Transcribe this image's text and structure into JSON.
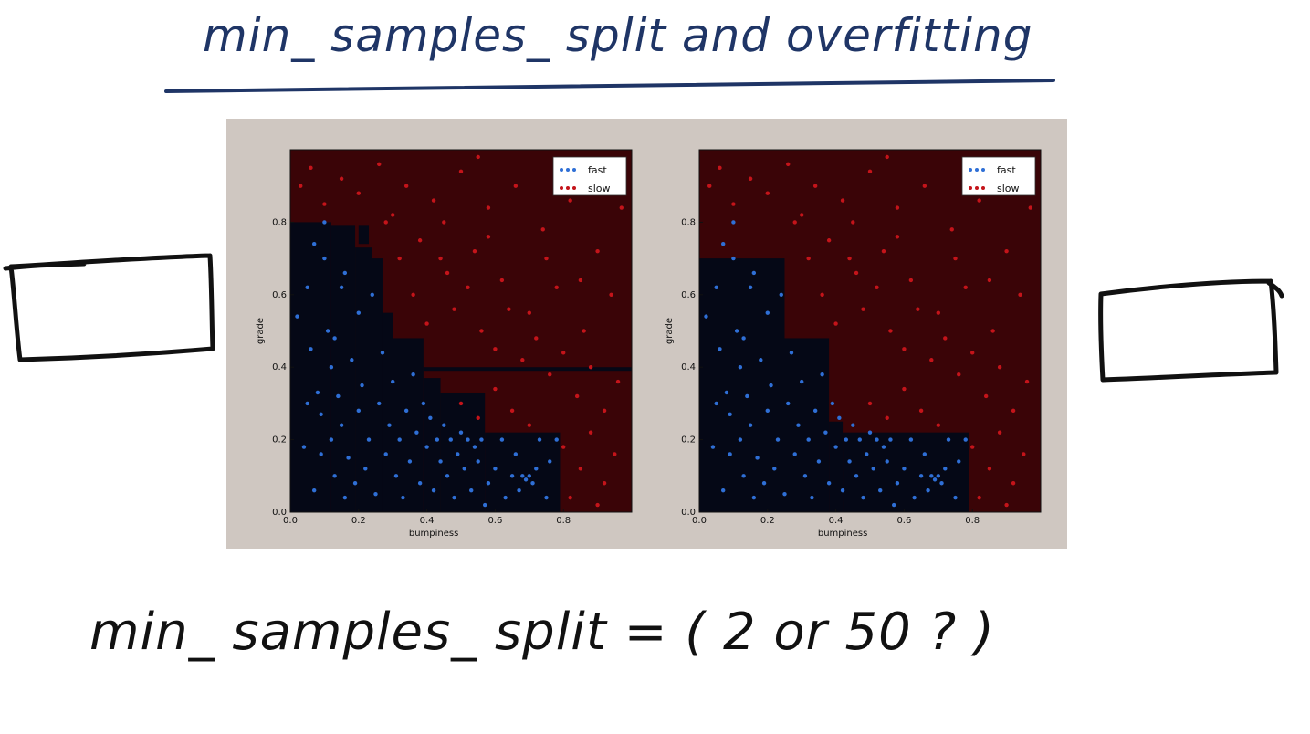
{
  "title": "min_ samples_ split   and   overfitting",
  "bottom_question": "min_ samples_ split  =  ( 2   or   50 ? )",
  "colors": {
    "fast_region": "#050816",
    "slow_region": "#3a0407",
    "fast_point": "#2f6fd6",
    "slow_point": "#c4141a",
    "figure_bg": "#cfc7c1",
    "ink_blue": "#1f3566"
  },
  "chart_data": [
    {
      "type": "scatter",
      "xlabel": "bumpiness",
      "ylabel": "grade",
      "xlim": [
        0.0,
        1.0
      ],
      "ylim": [
        0.0,
        1.0
      ],
      "x_ticks": [
        "0.0",
        "0.2",
        "0.4",
        "0.6",
        "0.8"
      ],
      "y_ticks": [
        "0.0",
        "0.2",
        "0.4",
        "0.6",
        "0.8"
      ],
      "legend": {
        "placement": "top-right",
        "entries": [
          "fast",
          "slow"
        ]
      },
      "fast_regions": [
        {
          "x0": 0.0,
          "x1": 0.12,
          "y0": 0.0,
          "y1": 0.8
        },
        {
          "x0": 0.12,
          "x1": 0.19,
          "y0": 0.0,
          "y1": 0.79
        },
        {
          "x0": 0.19,
          "x1": 0.24,
          "y0": 0.0,
          "y1": 0.73
        },
        {
          "x0": 0.24,
          "x1": 0.27,
          "y0": 0.0,
          "y1": 0.7
        },
        {
          "x0": 0.27,
          "x1": 0.3,
          "y0": 0.0,
          "y1": 0.55
        },
        {
          "x0": 0.3,
          "x1": 0.39,
          "y0": 0.0,
          "y1": 0.48
        },
        {
          "x0": 0.39,
          "x1": 0.44,
          "y0": 0.0,
          "y1": 0.37
        },
        {
          "x0": 0.44,
          "x1": 0.57,
          "y0": 0.0,
          "y1": 0.33
        },
        {
          "x0": 0.57,
          "x1": 0.79,
          "y0": 0.0,
          "y1": 0.22
        },
        {
          "x0": 0.39,
          "x1": 1.0,
          "y0": 0.39,
          "y1": 0.4
        },
        {
          "x0": 0.2,
          "x1": 0.23,
          "y0": 0.74,
          "y1": 0.79
        }
      ],
      "fast_points": [
        [
          0.02,
          0.54
        ],
        [
          0.04,
          0.18
        ],
        [
          0.05,
          0.62
        ],
        [
          0.06,
          0.45
        ],
        [
          0.07,
          0.06
        ],
        [
          0.08,
          0.33
        ],
        [
          0.09,
          0.16
        ],
        [
          0.09,
          0.27
        ],
        [
          0.1,
          0.7
        ],
        [
          0.1,
          0.8
        ],
        [
          0.11,
          0.5
        ],
        [
          0.12,
          0.2
        ],
        [
          0.12,
          0.4
        ],
        [
          0.13,
          0.1
        ],
        [
          0.14,
          0.32
        ],
        [
          0.15,
          0.62
        ],
        [
          0.15,
          0.24
        ],
        [
          0.16,
          0.04
        ],
        [
          0.17,
          0.15
        ],
        [
          0.18,
          0.42
        ],
        [
          0.19,
          0.08
        ],
        [
          0.2,
          0.55
        ],
        [
          0.2,
          0.28
        ],
        [
          0.21,
          0.35
        ],
        [
          0.22,
          0.12
        ],
        [
          0.23,
          0.2
        ],
        [
          0.24,
          0.6
        ],
        [
          0.25,
          0.05
        ],
        [
          0.26,
          0.3
        ],
        [
          0.27,
          0.44
        ],
        [
          0.28,
          0.16
        ],
        [
          0.29,
          0.24
        ],
        [
          0.3,
          0.36
        ],
        [
          0.31,
          0.1
        ],
        [
          0.32,
          0.2
        ],
        [
          0.33,
          0.04
        ],
        [
          0.34,
          0.28
        ],
        [
          0.35,
          0.14
        ],
        [
          0.36,
          0.38
        ],
        [
          0.37,
          0.22
        ],
        [
          0.38,
          0.08
        ],
        [
          0.39,
          0.3
        ],
        [
          0.4,
          0.18
        ],
        [
          0.41,
          0.26
        ],
        [
          0.42,
          0.06
        ],
        [
          0.43,
          0.2
        ],
        [
          0.44,
          0.14
        ],
        [
          0.45,
          0.24
        ],
        [
          0.46,
          0.1
        ],
        [
          0.47,
          0.2
        ],
        [
          0.48,
          0.04
        ],
        [
          0.49,
          0.16
        ],
        [
          0.5,
          0.22
        ],
        [
          0.51,
          0.12
        ],
        [
          0.52,
          0.2
        ],
        [
          0.53,
          0.06
        ],
        [
          0.54,
          0.18
        ],
        [
          0.55,
          0.14
        ],
        [
          0.56,
          0.2
        ],
        [
          0.57,
          0.02
        ],
        [
          0.58,
          0.08
        ],
        [
          0.6,
          0.12
        ],
        [
          0.62,
          0.2
        ],
        [
          0.63,
          0.04
        ],
        [
          0.65,
          0.1
        ],
        [
          0.66,
          0.16
        ],
        [
          0.67,
          0.06
        ],
        [
          0.68,
          0.1
        ],
        [
          0.69,
          0.09
        ],
        [
          0.7,
          0.1
        ],
        [
          0.71,
          0.08
        ],
        [
          0.72,
          0.12
        ],
        [
          0.73,
          0.2
        ],
        [
          0.75,
          0.04
        ],
        [
          0.76,
          0.14
        ],
        [
          0.78,
          0.2
        ],
        [
          0.05,
          0.3
        ],
        [
          0.13,
          0.48
        ],
        [
          0.07,
          0.74
        ],
        [
          0.16,
          0.66
        ]
      ],
      "slow_points": [
        [
          0.03,
          0.9
        ],
        [
          0.06,
          0.95
        ],
        [
          0.1,
          0.85
        ],
        [
          0.15,
          0.92
        ],
        [
          0.2,
          0.88
        ],
        [
          0.26,
          0.96
        ],
        [
          0.3,
          0.82
        ],
        [
          0.34,
          0.9
        ],
        [
          0.38,
          0.75
        ],
        [
          0.42,
          0.86
        ],
        [
          0.46,
          0.66
        ],
        [
          0.5,
          0.94
        ],
        [
          0.54,
          0.72
        ],
        [
          0.58,
          0.84
        ],
        [
          0.62,
          0.64
        ],
        [
          0.66,
          0.9
        ],
        [
          0.7,
          0.55
        ],
        [
          0.74,
          0.78
        ],
        [
          0.78,
          0.62
        ],
        [
          0.82,
          0.86
        ],
        [
          0.86,
          0.5
        ],
        [
          0.9,
          0.72
        ],
        [
          0.94,
          0.6
        ],
        [
          0.97,
          0.84
        ],
        [
          0.36,
          0.6
        ],
        [
          0.4,
          0.52
        ],
        [
          0.44,
          0.7
        ],
        [
          0.48,
          0.56
        ],
        [
          0.52,
          0.62
        ],
        [
          0.56,
          0.5
        ],
        [
          0.6,
          0.45
        ],
        [
          0.64,
          0.56
        ],
        [
          0.68,
          0.42
        ],
        [
          0.72,
          0.48
        ],
        [
          0.76,
          0.38
        ],
        [
          0.8,
          0.44
        ],
        [
          0.84,
          0.32
        ],
        [
          0.88,
          0.4
        ],
        [
          0.92,
          0.28
        ],
        [
          0.96,
          0.36
        ],
        [
          0.5,
          0.3
        ],
        [
          0.55,
          0.26
        ],
        [
          0.6,
          0.34
        ],
        [
          0.65,
          0.28
        ],
        [
          0.7,
          0.24
        ],
        [
          0.8,
          0.18
        ],
        [
          0.85,
          0.12
        ],
        [
          0.88,
          0.22
        ],
        [
          0.92,
          0.08
        ],
        [
          0.95,
          0.16
        ],
        [
          0.82,
          0.04
        ],
        [
          0.9,
          0.02
        ],
        [
          0.32,
          0.7
        ],
        [
          0.28,
          0.8
        ],
        [
          0.45,
          0.8
        ],
        [
          0.58,
          0.76
        ],
        [
          0.75,
          0.7
        ],
        [
          0.85,
          0.64
        ],
        [
          0.93,
          0.92
        ],
        [
          0.55,
          0.98
        ]
      ]
    },
    {
      "type": "scatter",
      "xlabel": "bumpiness",
      "ylabel": "grade",
      "xlim": [
        0.0,
        1.0
      ],
      "ylim": [
        0.0,
        1.0
      ],
      "x_ticks": [
        "0.0",
        "0.2",
        "0.4",
        "0.6",
        "0.8"
      ],
      "y_ticks": [
        "0.0",
        "0.2",
        "0.4",
        "0.6",
        "0.8"
      ],
      "legend": {
        "placement": "top-right",
        "entries": [
          "fast",
          "slow"
        ]
      },
      "fast_regions": [
        {
          "x0": 0.0,
          "x1": 0.25,
          "y0": 0.0,
          "y1": 0.7
        },
        {
          "x0": 0.25,
          "x1": 0.38,
          "y0": 0.0,
          "y1": 0.48
        },
        {
          "x0": 0.38,
          "x1": 0.42,
          "y0": 0.0,
          "y1": 0.25
        },
        {
          "x0": 0.42,
          "x1": 0.79,
          "y0": 0.0,
          "y1": 0.22
        }
      ],
      "fast_points": [
        [
          0.02,
          0.54
        ],
        [
          0.04,
          0.18
        ],
        [
          0.05,
          0.62
        ],
        [
          0.06,
          0.45
        ],
        [
          0.07,
          0.06
        ],
        [
          0.08,
          0.33
        ],
        [
          0.09,
          0.16
        ],
        [
          0.09,
          0.27
        ],
        [
          0.1,
          0.7
        ],
        [
          0.1,
          0.8
        ],
        [
          0.11,
          0.5
        ],
        [
          0.12,
          0.2
        ],
        [
          0.12,
          0.4
        ],
        [
          0.13,
          0.1
        ],
        [
          0.14,
          0.32
        ],
        [
          0.15,
          0.62
        ],
        [
          0.15,
          0.24
        ],
        [
          0.16,
          0.04
        ],
        [
          0.17,
          0.15
        ],
        [
          0.18,
          0.42
        ],
        [
          0.19,
          0.08
        ],
        [
          0.2,
          0.55
        ],
        [
          0.2,
          0.28
        ],
        [
          0.21,
          0.35
        ],
        [
          0.22,
          0.12
        ],
        [
          0.23,
          0.2
        ],
        [
          0.24,
          0.6
        ],
        [
          0.25,
          0.05
        ],
        [
          0.26,
          0.3
        ],
        [
          0.27,
          0.44
        ],
        [
          0.28,
          0.16
        ],
        [
          0.29,
          0.24
        ],
        [
          0.3,
          0.36
        ],
        [
          0.31,
          0.1
        ],
        [
          0.32,
          0.2
        ],
        [
          0.33,
          0.04
        ],
        [
          0.34,
          0.28
        ],
        [
          0.35,
          0.14
        ],
        [
          0.36,
          0.38
        ],
        [
          0.37,
          0.22
        ],
        [
          0.38,
          0.08
        ],
        [
          0.39,
          0.3
        ],
        [
          0.4,
          0.18
        ],
        [
          0.41,
          0.26
        ],
        [
          0.42,
          0.06
        ],
        [
          0.43,
          0.2
        ],
        [
          0.44,
          0.14
        ],
        [
          0.45,
          0.24
        ],
        [
          0.46,
          0.1
        ],
        [
          0.47,
          0.2
        ],
        [
          0.48,
          0.04
        ],
        [
          0.49,
          0.16
        ],
        [
          0.5,
          0.22
        ],
        [
          0.51,
          0.12
        ],
        [
          0.52,
          0.2
        ],
        [
          0.53,
          0.06
        ],
        [
          0.54,
          0.18
        ],
        [
          0.55,
          0.14
        ],
        [
          0.56,
          0.2
        ],
        [
          0.57,
          0.02
        ],
        [
          0.58,
          0.08
        ],
        [
          0.6,
          0.12
        ],
        [
          0.62,
          0.2
        ],
        [
          0.63,
          0.04
        ],
        [
          0.65,
          0.1
        ],
        [
          0.66,
          0.16
        ],
        [
          0.67,
          0.06
        ],
        [
          0.68,
          0.1
        ],
        [
          0.69,
          0.09
        ],
        [
          0.7,
          0.1
        ],
        [
          0.71,
          0.08
        ],
        [
          0.72,
          0.12
        ],
        [
          0.73,
          0.2
        ],
        [
          0.75,
          0.04
        ],
        [
          0.76,
          0.14
        ],
        [
          0.78,
          0.2
        ],
        [
          0.05,
          0.3
        ],
        [
          0.13,
          0.48
        ],
        [
          0.07,
          0.74
        ],
        [
          0.16,
          0.66
        ]
      ],
      "slow_points": [
        [
          0.03,
          0.9
        ],
        [
          0.06,
          0.95
        ],
        [
          0.1,
          0.85
        ],
        [
          0.15,
          0.92
        ],
        [
          0.2,
          0.88
        ],
        [
          0.26,
          0.96
        ],
        [
          0.3,
          0.82
        ],
        [
          0.34,
          0.9
        ],
        [
          0.38,
          0.75
        ],
        [
          0.42,
          0.86
        ],
        [
          0.46,
          0.66
        ],
        [
          0.5,
          0.94
        ],
        [
          0.54,
          0.72
        ],
        [
          0.58,
          0.84
        ],
        [
          0.62,
          0.64
        ],
        [
          0.66,
          0.9
        ],
        [
          0.7,
          0.55
        ],
        [
          0.74,
          0.78
        ],
        [
          0.78,
          0.62
        ],
        [
          0.82,
          0.86
        ],
        [
          0.86,
          0.5
        ],
        [
          0.9,
          0.72
        ],
        [
          0.94,
          0.6
        ],
        [
          0.97,
          0.84
        ],
        [
          0.36,
          0.6
        ],
        [
          0.4,
          0.52
        ],
        [
          0.44,
          0.7
        ],
        [
          0.48,
          0.56
        ],
        [
          0.52,
          0.62
        ],
        [
          0.56,
          0.5
        ],
        [
          0.6,
          0.45
        ],
        [
          0.64,
          0.56
        ],
        [
          0.68,
          0.42
        ],
        [
          0.72,
          0.48
        ],
        [
          0.76,
          0.38
        ],
        [
          0.8,
          0.44
        ],
        [
          0.84,
          0.32
        ],
        [
          0.88,
          0.4
        ],
        [
          0.92,
          0.28
        ],
        [
          0.96,
          0.36
        ],
        [
          0.5,
          0.3
        ],
        [
          0.55,
          0.26
        ],
        [
          0.6,
          0.34
        ],
        [
          0.65,
          0.28
        ],
        [
          0.7,
          0.24
        ],
        [
          0.8,
          0.18
        ],
        [
          0.85,
          0.12
        ],
        [
          0.88,
          0.22
        ],
        [
          0.92,
          0.08
        ],
        [
          0.95,
          0.16
        ],
        [
          0.82,
          0.04
        ],
        [
          0.9,
          0.02
        ],
        [
          0.32,
          0.7
        ],
        [
          0.28,
          0.8
        ],
        [
          0.45,
          0.8
        ],
        [
          0.58,
          0.76
        ],
        [
          0.75,
          0.7
        ],
        [
          0.85,
          0.64
        ],
        [
          0.93,
          0.92
        ],
        [
          0.55,
          0.98
        ]
      ]
    }
  ]
}
